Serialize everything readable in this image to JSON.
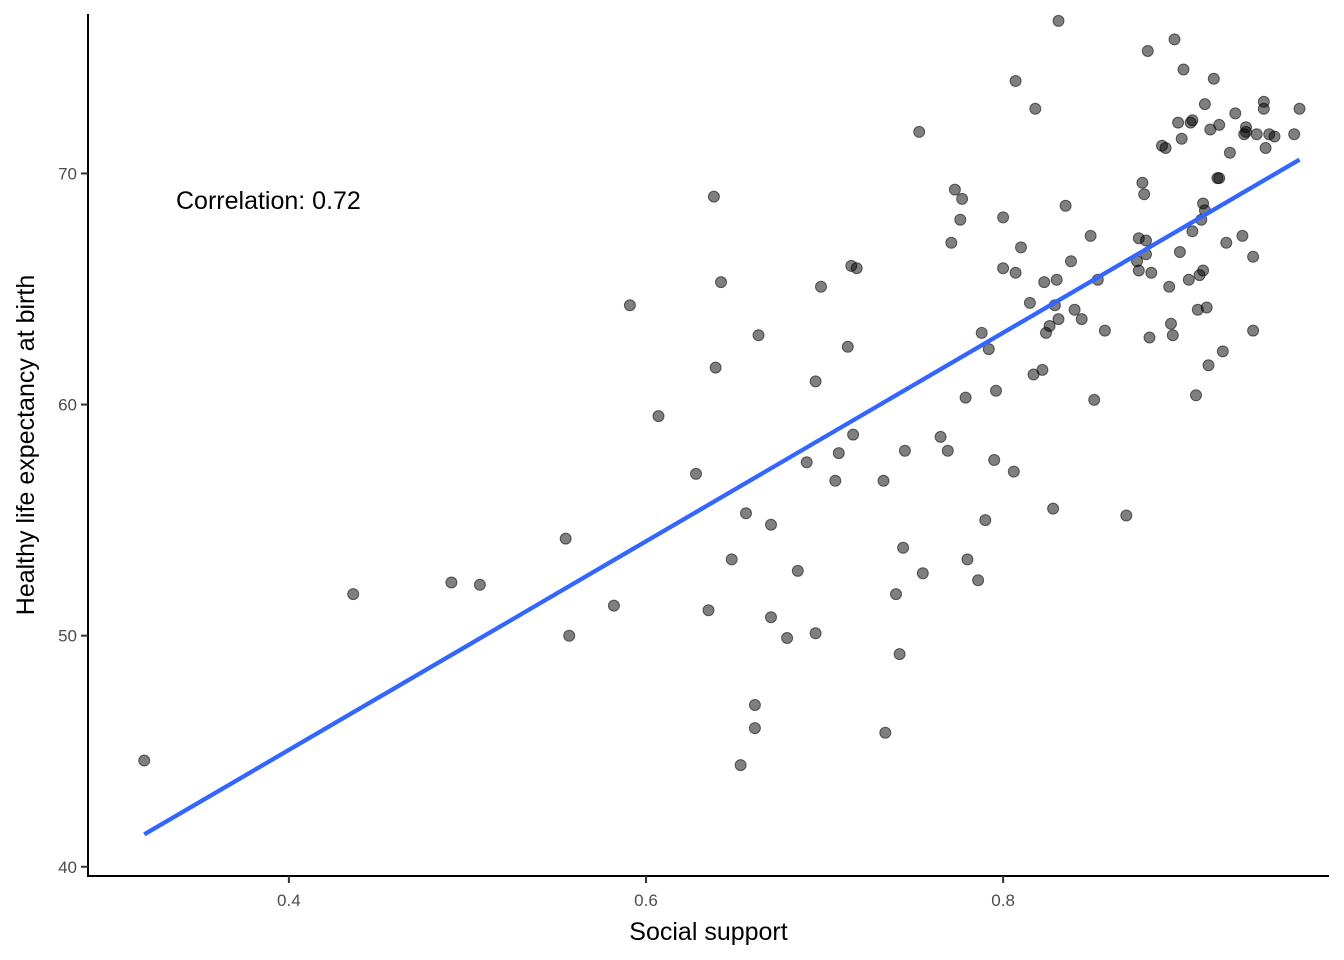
{
  "chart_data": {
    "type": "scatter",
    "title": "",
    "xlabel": "Social support",
    "ylabel": "Healthy life expectancy at birth",
    "xlim": [
      0.2875,
      0.9825
    ],
    "ylim": [
      39.6,
      76.9
    ],
    "x_ticks": [
      "0.4",
      "0.6",
      "0.8"
    ],
    "y_ticks": [
      "40",
      "50",
      "60",
      "70"
    ],
    "annotation": "Correlation: 0.72",
    "grid": false,
    "legend": "none",
    "colors": {
      "points": "#000000",
      "line": "#3366ff",
      "axis": "#000000"
    },
    "point_opacity": 0.5,
    "trend_line": {
      "x": [
        0.319,
        0.966
      ],
      "y": [
        41.4,
        70.6
      ]
    },
    "points": [
      [
        0.319,
        44.6
      ],
      [
        0.436,
        51.8
      ],
      [
        0.491,
        52.3
      ],
      [
        0.507,
        52.2
      ],
      [
        0.555,
        54.2
      ],
      [
        0.557,
        50.0
      ],
      [
        0.582,
        51.3
      ],
      [
        0.591,
        64.3
      ],
      [
        0.607,
        59.5
      ],
      [
        0.628,
        57.0
      ],
      [
        0.635,
        51.1
      ],
      [
        0.638,
        69.0
      ],
      [
        0.639,
        61.6
      ],
      [
        0.642,
        65.3
      ],
      [
        0.648,
        53.3
      ],
      [
        0.653,
        44.4
      ],
      [
        0.656,
        55.3
      ],
      [
        0.661,
        47.0
      ],
      [
        0.661,
        46.0
      ],
      [
        0.663,
        63.0
      ],
      [
        0.67,
        54.8
      ],
      [
        0.67,
        50.8
      ],
      [
        0.679,
        49.9
      ],
      [
        0.685,
        52.8
      ],
      [
        0.69,
        57.5
      ],
      [
        0.695,
        61.0
      ],
      [
        0.695,
        50.1
      ],
      [
        0.698,
        65.1
      ],
      [
        0.706,
        56.7
      ],
      [
        0.708,
        57.9
      ],
      [
        0.713,
        62.5
      ],
      [
        0.715,
        66.0
      ],
      [
        0.716,
        58.7
      ],
      [
        0.718,
        65.9
      ],
      [
        0.733,
        56.7
      ],
      [
        0.734,
        45.8
      ],
      [
        0.74,
        51.8
      ],
      [
        0.742,
        49.2
      ],
      [
        0.744,
        53.8
      ],
      [
        0.745,
        58.0
      ],
      [
        0.753,
        71.8
      ],
      [
        0.755,
        52.7
      ],
      [
        0.765,
        58.6
      ],
      [
        0.769,
        58.0
      ],
      [
        0.771,
        67.0
      ],
      [
        0.773,
        69.3
      ],
      [
        0.776,
        68.0
      ],
      [
        0.777,
        68.9
      ],
      [
        0.779,
        60.3
      ],
      [
        0.78,
        53.3
      ],
      [
        0.786,
        52.4
      ],
      [
        0.788,
        63.1
      ],
      [
        0.79,
        55.0
      ],
      [
        0.792,
        62.4
      ],
      [
        0.795,
        57.6
      ],
      [
        0.796,
        60.6
      ],
      [
        0.8,
        68.1
      ],
      [
        0.8,
        65.9
      ],
      [
        0.806,
        57.1
      ],
      [
        0.807,
        74.0
      ],
      [
        0.807,
        65.7
      ],
      [
        0.81,
        66.8
      ],
      [
        0.815,
        64.4
      ],
      [
        0.817,
        61.3
      ],
      [
        0.818,
        72.8
      ],
      [
        0.822,
        61.5
      ],
      [
        0.823,
        65.3
      ],
      [
        0.824,
        63.1
      ],
      [
        0.826,
        63.4
      ],
      [
        0.828,
        55.5
      ],
      [
        0.829,
        64.3
      ],
      [
        0.83,
        65.4
      ],
      [
        0.831,
        63.7
      ],
      [
        0.831,
        76.6
      ],
      [
        0.835,
        68.6
      ],
      [
        0.838,
        66.2
      ],
      [
        0.84,
        64.1
      ],
      [
        0.844,
        63.7
      ],
      [
        0.849,
        67.3
      ],
      [
        0.851,
        60.2
      ],
      [
        0.853,
        65.4
      ],
      [
        0.857,
        63.2
      ],
      [
        0.869,
        55.2
      ],
      [
        0.875,
        66.2
      ],
      [
        0.876,
        65.8
      ],
      [
        0.876,
        67.2
      ],
      [
        0.878,
        69.6
      ],
      [
        0.879,
        69.1
      ],
      [
        0.88,
        66.5
      ],
      [
        0.88,
        67.1
      ],
      [
        0.881,
        75.3
      ],
      [
        0.882,
        62.9
      ],
      [
        0.883,
        65.7
      ],
      [
        0.889,
        71.2
      ],
      [
        0.891,
        71.1
      ],
      [
        0.893,
        65.1
      ],
      [
        0.894,
        63.5
      ],
      [
        0.895,
        63.0
      ],
      [
        0.896,
        75.8
      ],
      [
        0.898,
        72.2
      ],
      [
        0.899,
        66.6
      ],
      [
        0.9,
        71.5
      ],
      [
        0.901,
        74.5
      ],
      [
        0.904,
        65.4
      ],
      [
        0.905,
        72.2
      ],
      [
        0.906,
        72.3
      ],
      [
        0.906,
        67.5
      ],
      [
        0.908,
        60.4
      ],
      [
        0.909,
        64.1
      ],
      [
        0.91,
        65.6
      ],
      [
        0.911,
        68.0
      ],
      [
        0.912,
        65.8
      ],
      [
        0.912,
        68.7
      ],
      [
        0.913,
        73.0
      ],
      [
        0.913,
        68.4
      ],
      [
        0.914,
        64.2
      ],
      [
        0.915,
        61.7
      ],
      [
        0.916,
        71.9
      ],
      [
        0.918,
        74.1
      ],
      [
        0.92,
        69.8
      ],
      [
        0.921,
        72.1
      ],
      [
        0.921,
        69.8
      ],
      [
        0.923,
        62.3
      ],
      [
        0.925,
        67.0
      ],
      [
        0.927,
        70.9
      ],
      [
        0.93,
        72.6
      ],
      [
        0.934,
        67.3
      ],
      [
        0.935,
        71.7
      ],
      [
        0.936,
        72.0
      ],
      [
        0.936,
        71.8
      ],
      [
        0.94,
        66.4
      ],
      [
        0.94,
        63.2
      ],
      [
        0.942,
        71.7
      ],
      [
        0.946,
        73.1
      ],
      [
        0.946,
        72.8
      ],
      [
        0.947,
        71.1
      ],
      [
        0.949,
        71.7
      ],
      [
        0.952,
        71.6
      ],
      [
        0.963,
        71.7
      ],
      [
        0.966,
        72.8
      ]
    ]
  }
}
